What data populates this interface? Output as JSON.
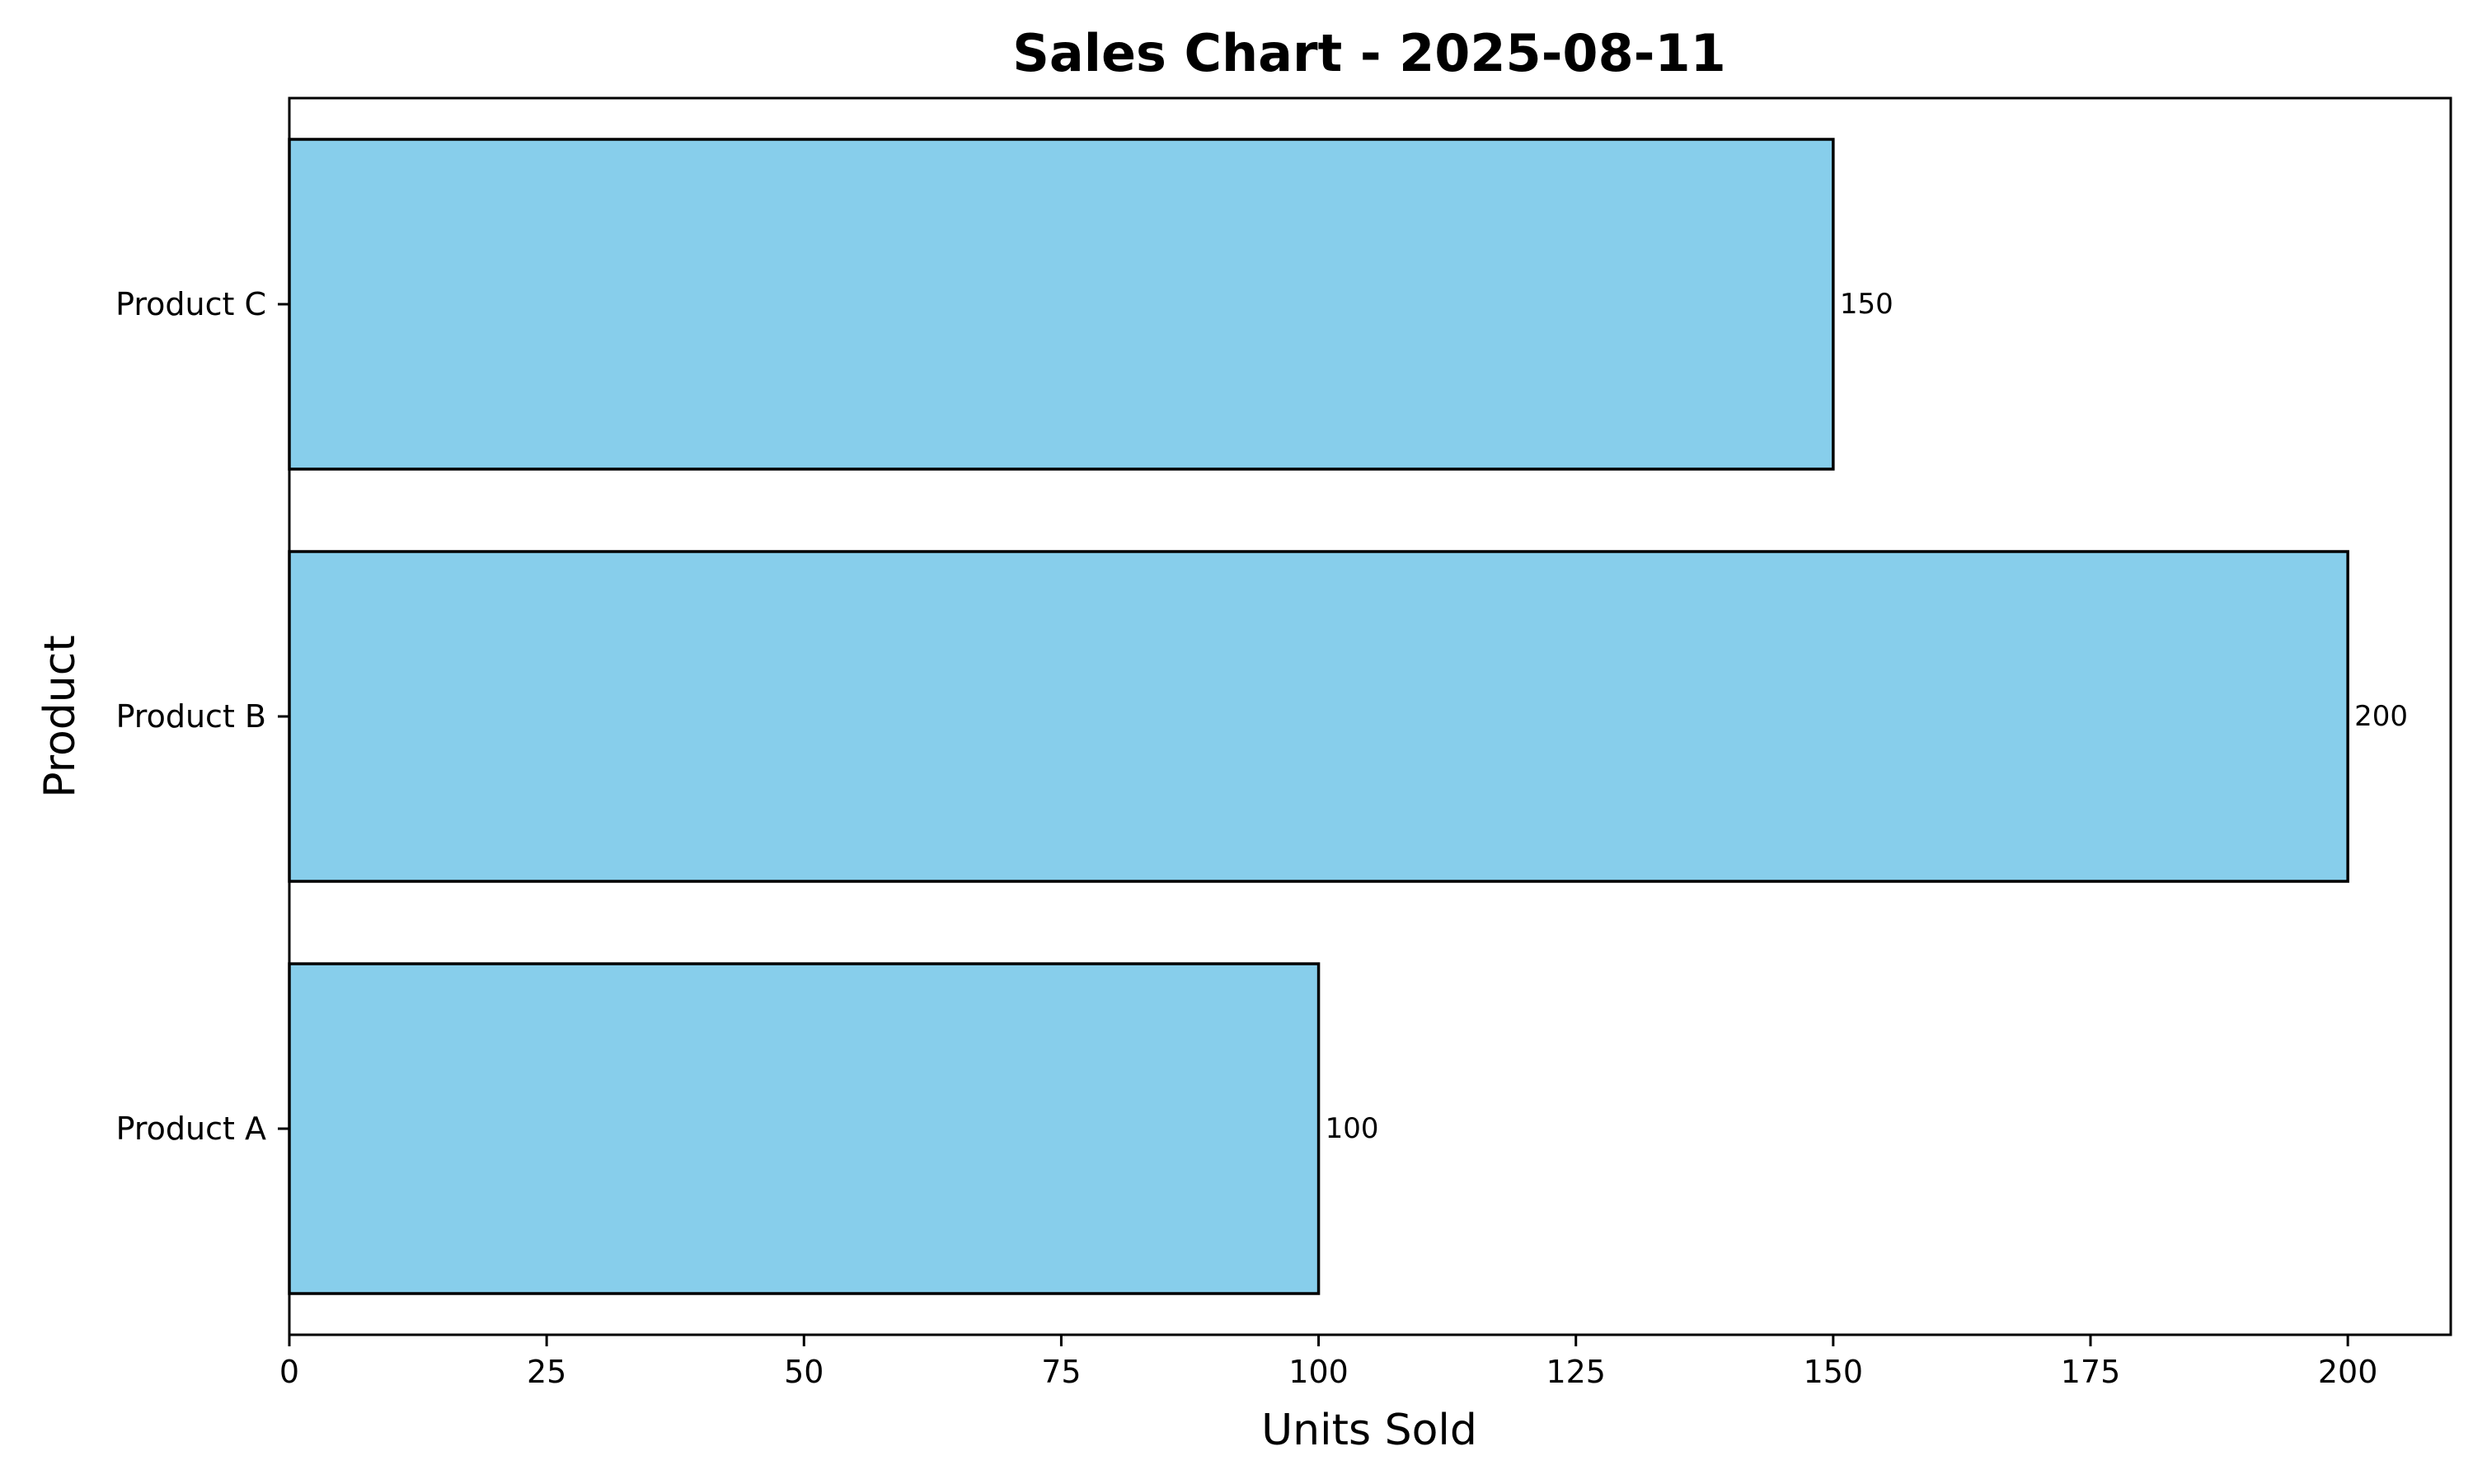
{
  "chart_data": {
    "type": "bar",
    "orientation": "horizontal",
    "title": "Sales Chart - 2025-08-11",
    "xlabel": "Units Sold",
    "ylabel": "Product",
    "categories": [
      "Product A",
      "Product B",
      "Product C"
    ],
    "values": [
      100,
      200,
      150
    ],
    "data_labels": [
      "100",
      "200",
      "150"
    ],
    "xlim": [
      0,
      210
    ],
    "xticks": [
      0,
      25,
      50,
      75,
      100,
      125,
      150,
      175,
      200
    ],
    "grid": false,
    "legend": "none",
    "colors": {
      "bar_fill": "#87CEEB",
      "bar_edge": "#000000"
    }
  }
}
